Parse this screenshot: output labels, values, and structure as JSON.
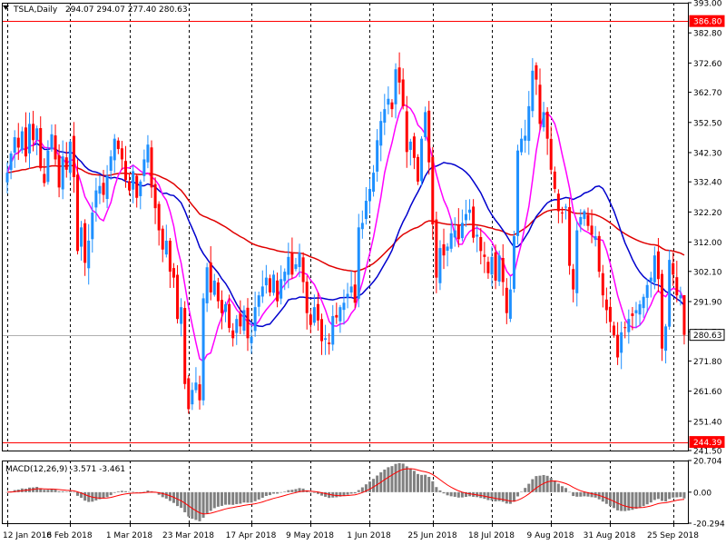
{
  "header": {
    "symbol": "TSLA,Daily",
    "ohlc": "294.07 294.07 277.40 280.63"
  },
  "macd_header": {
    "label": "MACD(12,26,9) -3.571 -3.461"
  },
  "colors": {
    "bull": "#1e90ff",
    "bear": "#ff0000",
    "ma_fast": "#ff00ff",
    "ma_mid": "#0000cd",
    "ma_slow": "#e00000",
    "hline": "#ff0000",
    "price_tag_bg": "#ffffff",
    "histogram": "#808080",
    "signal": "#ff0000",
    "grid": "#000000"
  },
  "chart_data": [
    {
      "type": "candlestick",
      "title": "TSLA,Daily",
      "ylim": [
        241.5,
        393.0
      ],
      "y_ticks": [
        "393.00",
        "382.80",
        "372.60",
        "362.70",
        "352.50",
        "342.30",
        "332.40",
        "322.20",
        "312.00",
        "302.10",
        "291.90",
        "281.70",
        "271.80",
        "261.60",
        "251.40",
        "241.50"
      ],
      "x_ticks": [
        "12 Jan 2018",
        "6 Feb 2018",
        "1 Mar 2018",
        "23 Mar 2018",
        "17 Apr 2018",
        "9 May 2018",
        "1 Jun 2018",
        "25 Jun 2018",
        "18 Jul 2018",
        "9 Aug 2018",
        "31 Aug 2018",
        "25 Sep 2018"
      ],
      "x_tick_index": [
        0,
        17,
        33,
        49,
        66,
        82,
        98,
        115,
        131,
        147,
        163,
        180
      ],
      "horizontal_lines": [
        386.8,
        244.39
      ],
      "current_price": 280.63,
      "price_tags": [
        "386.80",
        "280.63",
        "244.39"
      ],
      "grid": true,
      "series": [
        {
          "name": "",
          "close": [
            335.5,
            342.0,
            347.5,
            344.0,
            349.5,
            341.0,
            352.0,
            346.5,
            350.5,
            337.0,
            332.0,
            343.0,
            348.5,
            340.0,
            330.5,
            341.0,
            336.5,
            346.0,
            334.0,
            309.0,
            317.0,
            305.0,
            312.5,
            322.0,
            329.5,
            331.0,
            328.0,
            334.5,
            341.0,
            347.0,
            343.5,
            340.0,
            333.0,
            329.5,
            336.0,
            327.0,
            332.5,
            340.0,
            345.0,
            330.5,
            323.5,
            316.0,
            309.5,
            312.5,
            302.0,
            300.0,
            286.0,
            290.0,
            264.0,
            255.5,
            262.0,
            264.5,
            258.5,
            293.0,
            303.5,
            295.0,
            299.0,
            292.0,
            288.0,
            291.0,
            283.0,
            279.5,
            286.0,
            283.5,
            289.0,
            279.5,
            280.0,
            290.0,
            294.0,
            297.0,
            300.0,
            295.0,
            301.0,
            292.0,
            299.5,
            302.0,
            307.0,
            301.0,
            304.5,
            308.5,
            298.5,
            288.0,
            284.0,
            290.0,
            285.5,
            278.5,
            279.5,
            277.5,
            287.0,
            286.5,
            290.0,
            291.5,
            294.5,
            297.0,
            291.5,
            317.0,
            318.5,
            326.0,
            330.0,
            335.5,
            346.5,
            353.0,
            357.0,
            360.5,
            357.0,
            370.5,
            366.0,
            358.0,
            342.5,
            346.0,
            340.5,
            332.5,
            347.0,
            356.0,
            339.0,
            318.0,
            300.0,
            310.0,
            307.5,
            310.5,
            315.0,
            316.0,
            313.0,
            318.5,
            321.5,
            323.0,
            313.5,
            314.5,
            309.0,
            307.0,
            301.5,
            307.0,
            299.0,
            307.5,
            298.5,
            288.0,
            296.0,
            314.0,
            343.0,
            347.0,
            348.0,
            358.0,
            370.0,
            367.0,
            352.0,
            356.0,
            347.0,
            336.5,
            330.0,
            322.5,
            322.0,
            324.0,
            304.0,
            296.0,
            316.0,
            320.5,
            322.5,
            317.5,
            314.5,
            314.0,
            302.0,
            294.0,
            289.0,
            285.0,
            280.5,
            273.0,
            281.5,
            283.0,
            286.0,
            287.0,
            289.0,
            291.0,
            293.5,
            297.5,
            300.0,
            307.5,
            299.5,
            276.0,
            283.5,
            306.0,
            301.0,
            294.0,
            294.07,
            280.63
          ]
        }
      ]
    },
    {
      "type": "bar",
      "title": "MACD(12,26,9) -3.571 -3.461",
      "ylim": [
        -20.294,
        20.704
      ],
      "y_ticks": [
        "20.704",
        "0.00",
        "-20.294"
      ],
      "series": [
        {
          "name": "",
          "values": []
        },
        {
          "name": "",
          "values": []
        }
      ]
    }
  ]
}
